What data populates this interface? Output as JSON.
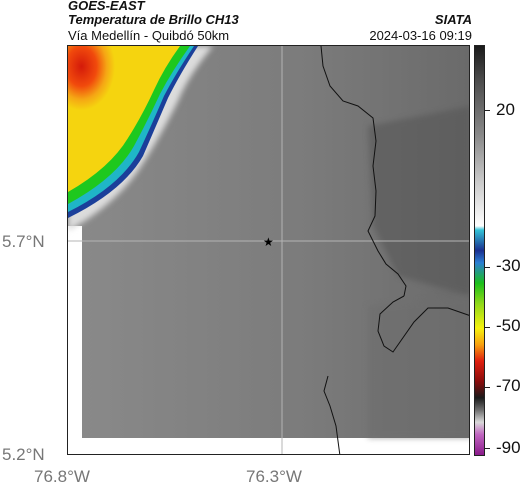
{
  "header": {
    "satellite": "GOES-EAST",
    "product": "Temperatura de Brillo CH13",
    "route": "Vía Medellín - Quibdó 50km",
    "org": "SIATA",
    "timestamp": "2024-03-16 09:19"
  },
  "axes": {
    "lat_labels": [
      "5.7°N",
      "5.2°N"
    ],
    "lon_labels": [
      "76.8°W",
      "76.3°W"
    ]
  },
  "colorbar": {
    "tick_labels": [
      "20",
      "-30",
      "-50",
      "-70",
      "-90"
    ]
  },
  "marker": {
    "symbol": "★"
  }
}
